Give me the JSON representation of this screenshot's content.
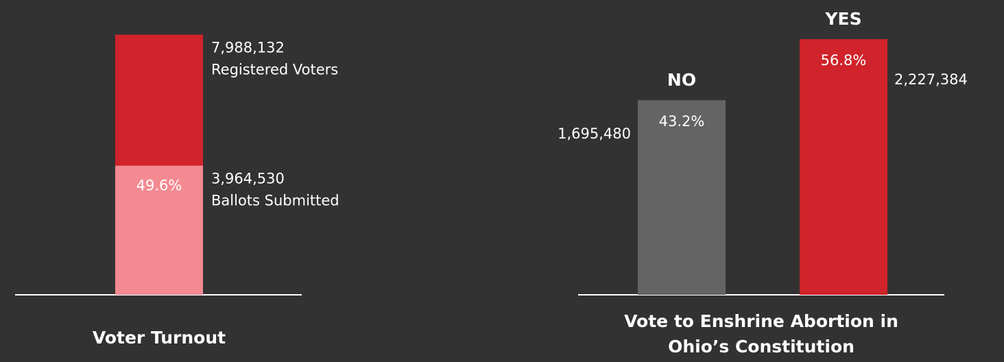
{
  "chart_data": [
    {
      "type": "overlap_bar",
      "title": [
        "Voter Turnout"
      ],
      "series": [
        {
          "name": "Registered Voters",
          "color": "#d0232b",
          "values": [
            7988132
          ],
          "value_labels": [
            "7,988,132"
          ]
        },
        {
          "name": "Ballots Submitted",
          "color": "#f38a92",
          "values": [
            3964530
          ],
          "value_labels": [
            "3,964,530"
          ],
          "percent": [
            49.6
          ],
          "percent_labels": [
            "49.6%"
          ]
        }
      ],
      "ylim": [
        0,
        8000000
      ]
    },
    {
      "type": "bar",
      "title": [
        "Vote to Enshrine Abortion in",
        "Ohio’s Constitution"
      ],
      "categories": [
        "NO",
        "YES"
      ],
      "values": [
        1695480,
        2227384
      ],
      "value_labels": [
        "1,695,480",
        "2,227,384"
      ],
      "percent": [
        43.2,
        56.8
      ],
      "percent_labels": [
        "43.2%",
        "56.8%"
      ],
      "colors": [
        "#636463",
        "#d0232b"
      ],
      "ylim": [
        0,
        2300000
      ]
    }
  ]
}
